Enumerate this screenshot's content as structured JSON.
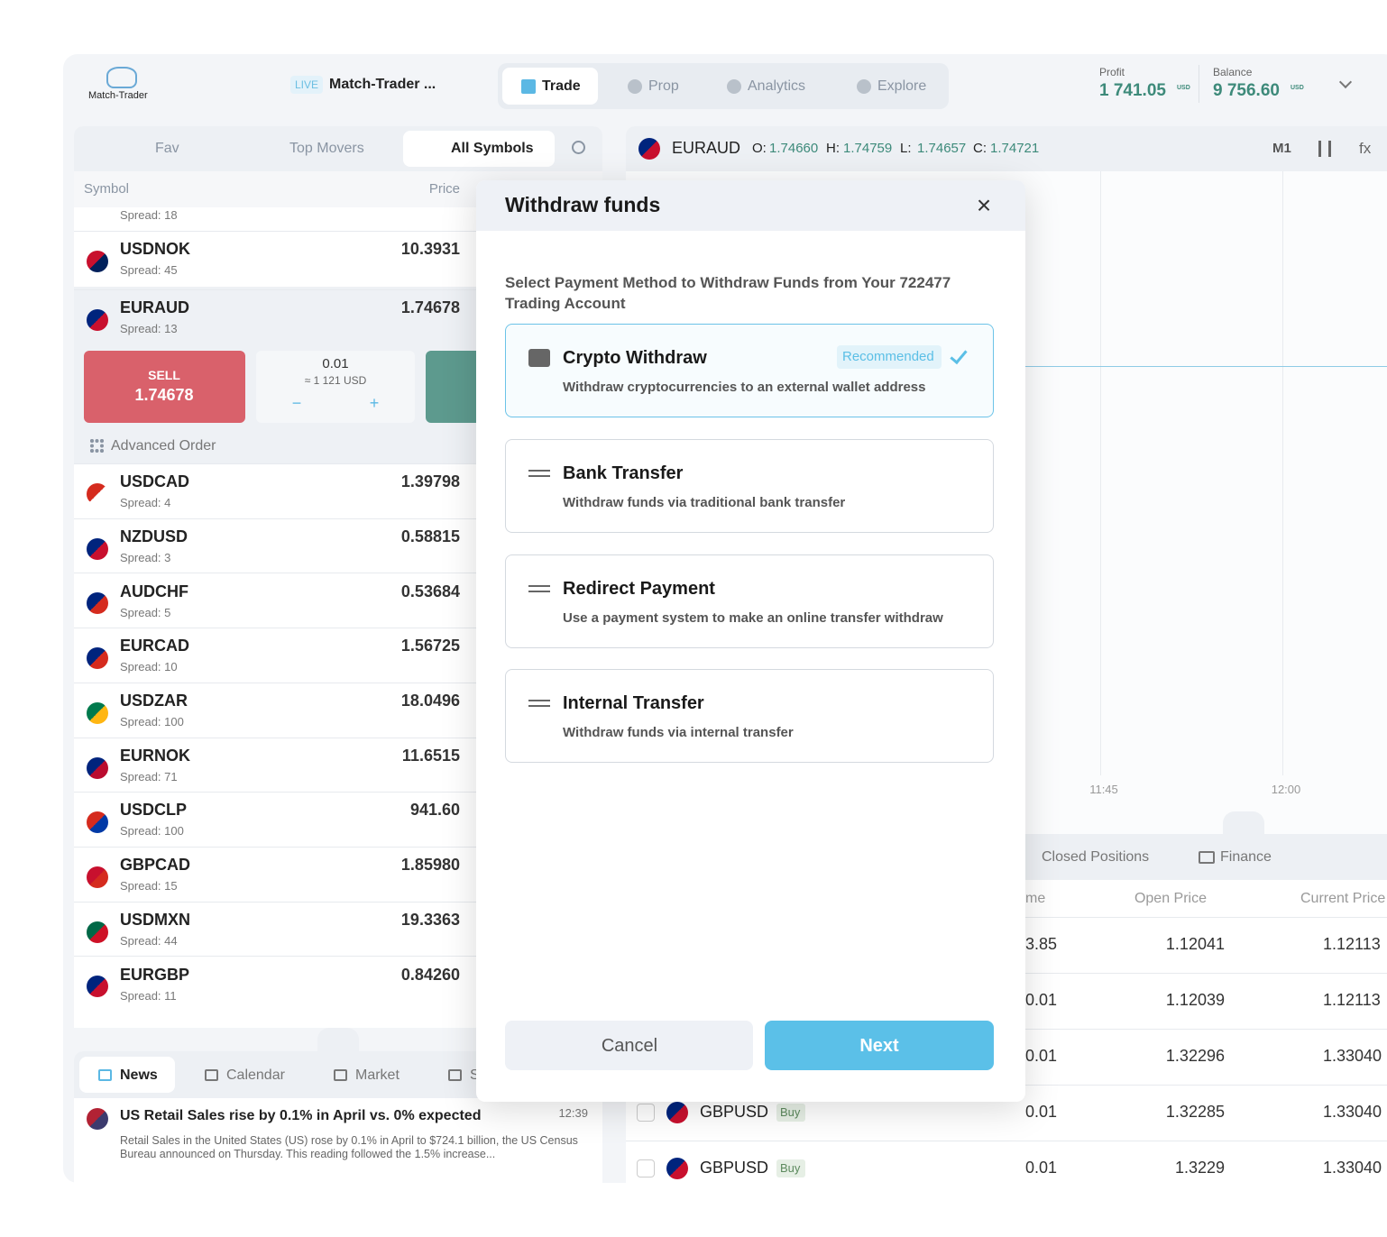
{
  "header": {
    "logo": "Match-Trader",
    "live": "LIVE",
    "account": "Match-Trader ...",
    "tabs": [
      "Trade",
      "Prop",
      "Analytics",
      "Explore"
    ],
    "profit": {
      "label": "Profit",
      "value": "1 741.05",
      "currency": "USD"
    },
    "balance": {
      "label": "Balance",
      "value": "9 756.60",
      "currency": "USD"
    }
  },
  "watchlist": {
    "tabs": [
      "Fav",
      "Top Movers",
      "All Symbols"
    ],
    "columns": {
      "symbol": "Symbol",
      "price": "Price"
    },
    "partial_spread": "Spread: 18",
    "rows": [
      {
        "symbol": "USDNOK",
        "spread": "Spread: 45",
        "price": "10.3931"
      },
      {
        "symbol": "EURAUD",
        "spread": "Spread: 13",
        "price": "1.74678"
      },
      {
        "symbol": "USDCAD",
        "spread": "Spread: 4",
        "price": "1.39798"
      },
      {
        "symbol": "NZDUSD",
        "spread": "Spread: 3",
        "price": "0.58815"
      },
      {
        "symbol": "AUDCHF",
        "spread": "Spread: 5",
        "price": "0.53684"
      },
      {
        "symbol": "EURCAD",
        "spread": "Spread: 10",
        "price": "1.56725"
      },
      {
        "symbol": "USDZAR",
        "spread": "Spread: 100",
        "price": "18.0496"
      },
      {
        "symbol": "EURNOK",
        "spread": "Spread: 71",
        "price": "11.6515"
      },
      {
        "symbol": "USDCLP",
        "spread": "Spread: 100",
        "price": "941.60"
      },
      {
        "symbol": "GBPCAD",
        "spread": "Spread: 15",
        "price": "1.85980"
      },
      {
        "symbol": "USDMXN",
        "spread": "Spread: 44",
        "price": "19.3363"
      },
      {
        "symbol": "EURGBP",
        "spread": "Spread: 11",
        "price": "0.84260"
      }
    ],
    "ticket": {
      "sell_label": "SELL",
      "sell_price": "1.74678",
      "quantity": "0.01",
      "quantity_value": "≈ 1 121 USD",
      "minus": "−",
      "plus": "+"
    },
    "advanced_order": "Advanced Order"
  },
  "news": {
    "tabs": [
      "News",
      "Calendar",
      "Market",
      "S"
    ],
    "items": [
      {
        "title": "US Retail Sales rise by 0.1% in April vs. 0% expected",
        "time": "12:39",
        "body": "Retail Sales in the United States (US) rose by 0.1% in April to $724.1 billion, the US Census Bureau announced on Thursday. This reading followed the 1.5% increase..."
      }
    ]
  },
  "chart": {
    "symbol": "EURAUD",
    "ohlc": [
      {
        "label": "O:",
        "value": "1.74660"
      },
      {
        "label": "H:",
        "value": "1.74759"
      },
      {
        "label": "L:",
        "value": "1.74657"
      },
      {
        "label": "C:",
        "value": "1.74721"
      }
    ],
    "timeframe": "M1",
    "fx": "fx",
    "times": [
      "11:45",
      "12:00"
    ]
  },
  "positions": {
    "tabs": [
      "Closed Positions",
      "Finance"
    ],
    "columns": [
      "me",
      "Open Price",
      "Current Price"
    ],
    "rows": [
      {
        "volume": "3.85",
        "open": "1.12041",
        "current": "1.12113"
      },
      {
        "volume": "0.01",
        "open": "1.12039",
        "current": "1.12113"
      },
      {
        "volume": "0.01",
        "open": "1.32296",
        "current": "1.33040"
      },
      {
        "symbol": "GBPUSD",
        "side": "Buy",
        "volume": "0.01",
        "open": "1.32285",
        "current": "1.33040"
      },
      {
        "symbol": "GBPUSD",
        "side": "Buy",
        "volume": "0.01",
        "open": "1.3229",
        "current": "1.33040"
      }
    ]
  },
  "modal": {
    "title": "Withdraw funds",
    "close": "×",
    "subtitle": "Select Payment Method to Withdraw Funds from Your 722477 Trading Account",
    "options": [
      {
        "title": "Crypto Withdraw",
        "description": "Withdraw cryptocurrencies to an external wallet address",
        "badge": "Recommended"
      },
      {
        "title": "Bank Transfer",
        "description": "Withdraw funds via traditional bank transfer"
      },
      {
        "title": "Redirect Payment",
        "description": "Use a payment system to make an online transfer withdraw"
      },
      {
        "title": "Internal Transfer",
        "description": "Withdraw funds via internal transfer"
      }
    ],
    "cancel": "Cancel",
    "next": "Next"
  }
}
